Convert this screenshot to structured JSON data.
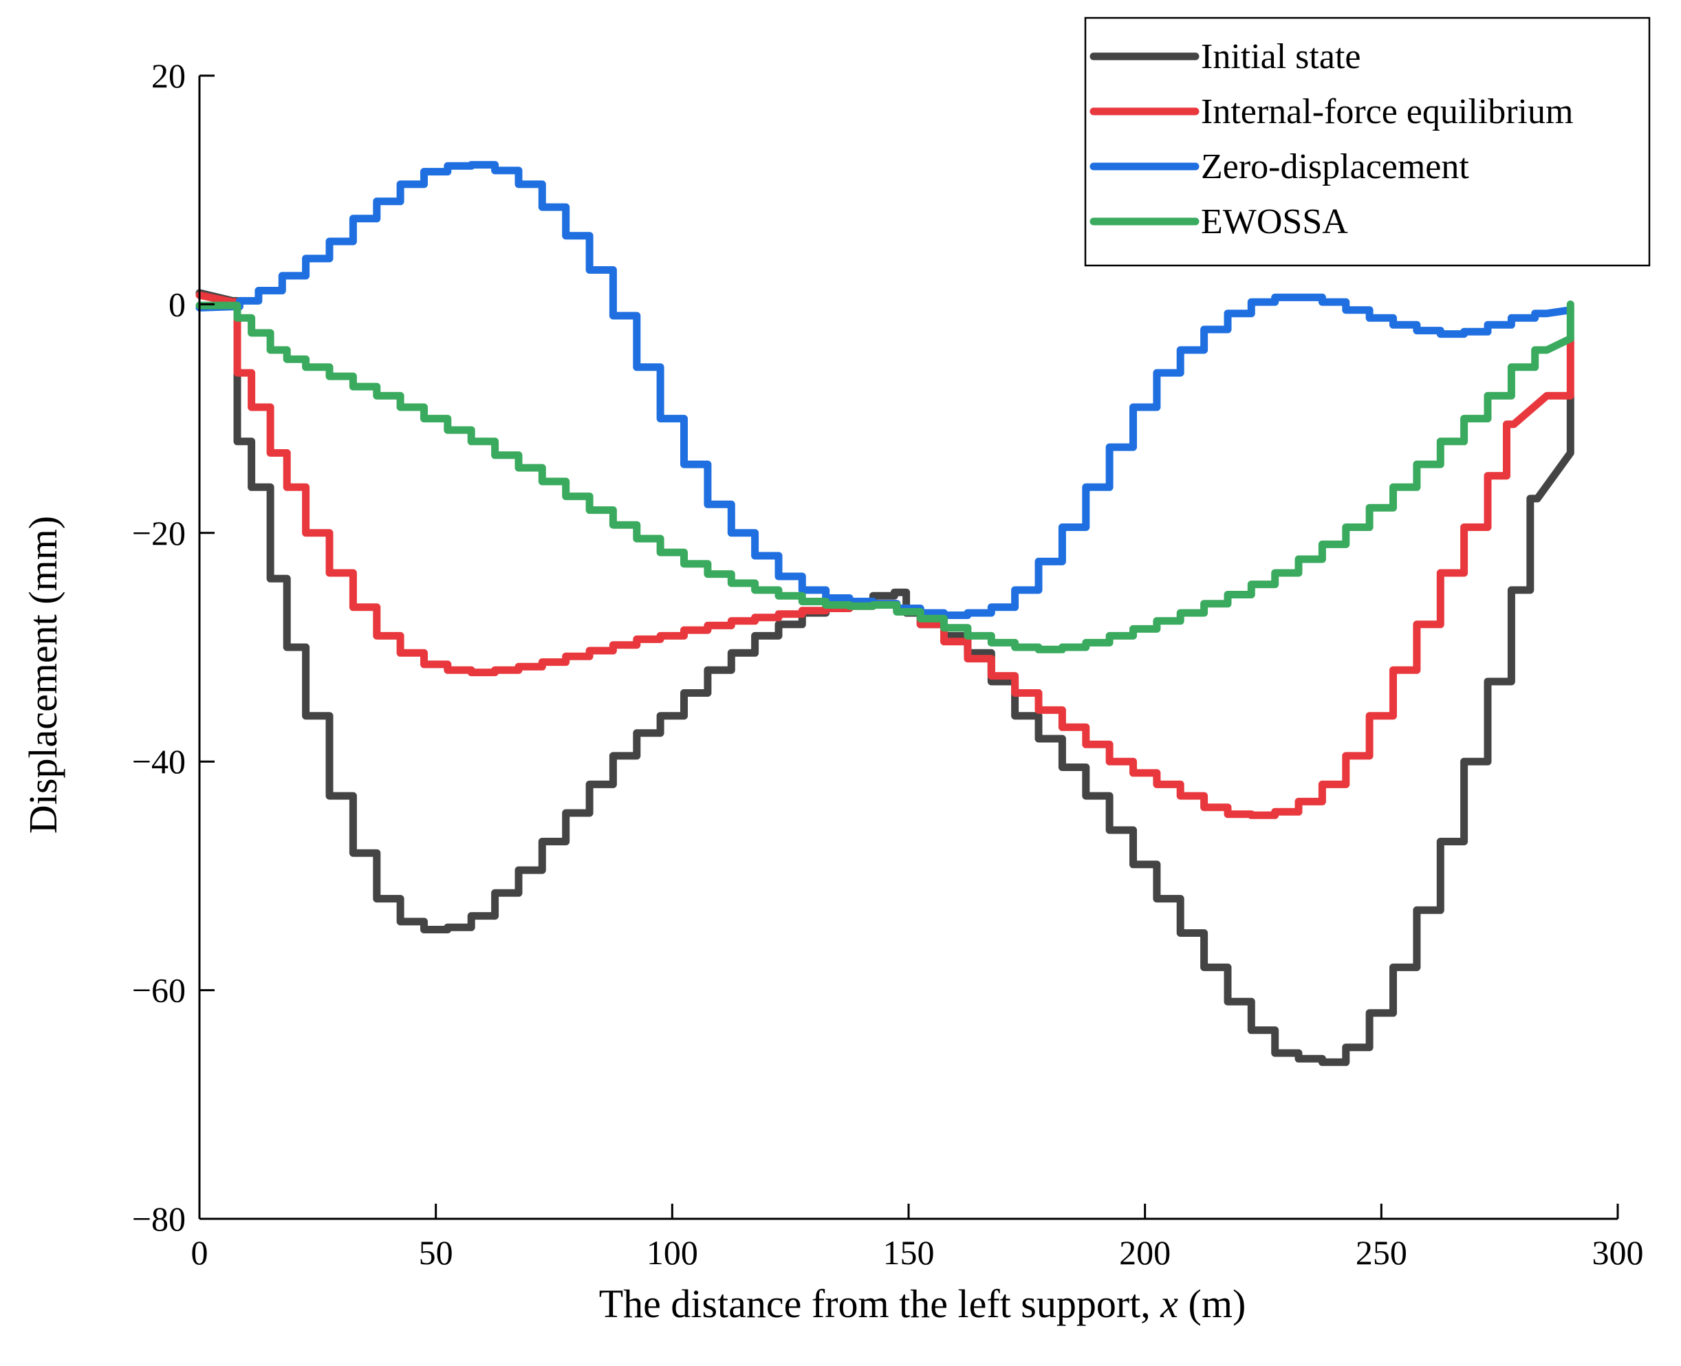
{
  "chart_data": {
    "type": "line",
    "title": "",
    "xlabel_prefix": "The distance from the left support, ",
    "xlabel_var": "x",
    "xlabel_suffix": " (m)",
    "ylabel": "Displacement (mm)",
    "xlim": [
      0,
      300
    ],
    "ylim": [
      -80,
      20
    ],
    "xticks": [
      0,
      50,
      100,
      150,
      200,
      250,
      300
    ],
    "xtick_labels": [
      "0",
      "50",
      "100",
      "150",
      "200",
      "250",
      "300"
    ],
    "yticks": [
      20,
      0,
      -20,
      -40,
      -60,
      -80
    ],
    "ytick_labels": [
      "20",
      "0",
      "−20",
      "−40",
      "−60",
      "−80"
    ],
    "grid": false,
    "legend_position": "top-right",
    "series": [
      {
        "name": "Initial state",
        "color": "#444444",
        "points": [
          [
            0,
            1.0
          ],
          [
            7,
            0.3
          ],
          [
            9,
            -12
          ],
          [
            13,
            -16
          ],
          [
            17,
            -24
          ],
          [
            20,
            -30
          ],
          [
            25,
            -36
          ],
          [
            30,
            -43
          ],
          [
            35,
            -48
          ],
          [
            40,
            -52
          ],
          [
            45,
            -54
          ],
          [
            50,
            -54.7
          ],
          [
            55,
            -54.5
          ],
          [
            60,
            -53.5
          ],
          [
            65,
            -51.5
          ],
          [
            70,
            -49.5
          ],
          [
            75,
            -47
          ],
          [
            80,
            -44.5
          ],
          [
            85,
            -42
          ],
          [
            90,
            -39.5
          ],
          [
            95,
            -37.5
          ],
          [
            100,
            -36
          ],
          [
            105,
            -34
          ],
          [
            110,
            -32
          ],
          [
            115,
            -30.5
          ],
          [
            120,
            -29
          ],
          [
            125,
            -28
          ],
          [
            130,
            -27
          ],
          [
            135,
            -26.5
          ],
          [
            140,
            -26
          ],
          [
            145,
            -25.5
          ],
          [
            149,
            -25.2
          ],
          [
            150,
            -27
          ],
          [
            155,
            -28
          ],
          [
            160,
            -29
          ],
          [
            165,
            -30.5
          ],
          [
            170,
            -33
          ],
          [
            175,
            -36
          ],
          [
            180,
            -38
          ],
          [
            185,
            -40.5
          ],
          [
            190,
            -43
          ],
          [
            195,
            -46
          ],
          [
            200,
            -49
          ],
          [
            205,
            -52
          ],
          [
            210,
            -55
          ],
          [
            215,
            -58
          ],
          [
            220,
            -61
          ],
          [
            225,
            -63.5
          ],
          [
            230,
            -65.5
          ],
          [
            235,
            -66
          ],
          [
            240,
            -66.3
          ],
          [
            245,
            -65
          ],
          [
            250,
            -62
          ],
          [
            255,
            -58
          ],
          [
            260,
            -53
          ],
          [
            265,
            -47
          ],
          [
            270,
            -40
          ],
          [
            275,
            -33
          ],
          [
            280,
            -25
          ],
          [
            283,
            -17
          ],
          [
            290,
            -13
          ],
          [
            290,
            -8
          ]
        ]
      },
      {
        "name": "Internal-force equilibrium",
        "color": "#e8383d",
        "points": [
          [
            0,
            0.8
          ],
          [
            7,
            0.2
          ],
          [
            9,
            -6
          ],
          [
            13,
            -9
          ],
          [
            17,
            -13
          ],
          [
            20,
            -16
          ],
          [
            25,
            -20
          ],
          [
            30,
            -23.5
          ],
          [
            35,
            -26.5
          ],
          [
            40,
            -29
          ],
          [
            45,
            -30.5
          ],
          [
            50,
            -31.5
          ],
          [
            55,
            -32
          ],
          [
            60,
            -32.2
          ],
          [
            65,
            -32
          ],
          [
            70,
            -31.7
          ],
          [
            75,
            -31.3
          ],
          [
            80,
            -30.8
          ],
          [
            85,
            -30.3
          ],
          [
            90,
            -29.8
          ],
          [
            95,
            -29.3
          ],
          [
            100,
            -29
          ],
          [
            105,
            -28.5
          ],
          [
            110,
            -28.1
          ],
          [
            115,
            -27.7
          ],
          [
            120,
            -27.4
          ],
          [
            125,
            -27.1
          ],
          [
            130,
            -26.8
          ],
          [
            135,
            -26.6
          ],
          [
            140,
            -26.4
          ],
          [
            145,
            -26.2
          ],
          [
            150,
            -26.8
          ],
          [
            155,
            -28
          ],
          [
            160,
            -29.5
          ],
          [
            165,
            -31
          ],
          [
            170,
            -32.5
          ],
          [
            175,
            -34
          ],
          [
            180,
            -35.5
          ],
          [
            185,
            -37
          ],
          [
            190,
            -38.5
          ],
          [
            195,
            -40
          ],
          [
            200,
            -41
          ],
          [
            205,
            -42
          ],
          [
            210,
            -43
          ],
          [
            215,
            -44
          ],
          [
            220,
            -44.6
          ],
          [
            225,
            -44.7
          ],
          [
            230,
            -44.4
          ],
          [
            235,
            -43.5
          ],
          [
            240,
            -42
          ],
          [
            245,
            -39.5
          ],
          [
            250,
            -36
          ],
          [
            255,
            -32
          ],
          [
            260,
            -28
          ],
          [
            265,
            -23.5
          ],
          [
            270,
            -19.5
          ],
          [
            275,
            -15
          ],
          [
            278,
            -10.5
          ],
          [
            285,
            -8
          ],
          [
            290,
            -8
          ],
          [
            290,
            -3
          ]
        ]
      },
      {
        "name": "Zero-displacement",
        "color": "#1f6fe0",
        "points": [
          [
            0,
            -0.3
          ],
          [
            7,
            -0.2
          ],
          [
            10,
            0.3
          ],
          [
            15,
            1.2
          ],
          [
            20,
            2.5
          ],
          [
            25,
            4
          ],
          [
            30,
            5.5
          ],
          [
            35,
            7.5
          ],
          [
            40,
            9
          ],
          [
            45,
            10.5
          ],
          [
            50,
            11.6
          ],
          [
            55,
            12.1
          ],
          [
            60,
            12.2
          ],
          [
            65,
            11.7
          ],
          [
            70,
            10.5
          ],
          [
            75,
            8.5
          ],
          [
            80,
            6
          ],
          [
            85,
            3
          ],
          [
            90,
            -1
          ],
          [
            95,
            -5.5
          ],
          [
            100,
            -10
          ],
          [
            105,
            -14
          ],
          [
            110,
            -17.5
          ],
          [
            115,
            -20
          ],
          [
            120,
            -22
          ],
          [
            125,
            -23.8
          ],
          [
            130,
            -25
          ],
          [
            135,
            -25.7
          ],
          [
            140,
            -26
          ],
          [
            145,
            -26.2
          ],
          [
            150,
            -26.6
          ],
          [
            155,
            -27
          ],
          [
            160,
            -27.2
          ],
          [
            165,
            -27
          ],
          [
            170,
            -26.5
          ],
          [
            175,
            -25
          ],
          [
            180,
            -22.5
          ],
          [
            185,
            -19.5
          ],
          [
            190,
            -16
          ],
          [
            195,
            -12.5
          ],
          [
            200,
            -9
          ],
          [
            205,
            -6
          ],
          [
            210,
            -4
          ],
          [
            215,
            -2.2
          ],
          [
            220,
            -0.8
          ],
          [
            225,
            0.2
          ],
          [
            230,
            0.6
          ],
          [
            235,
            0.6
          ],
          [
            240,
            0.2
          ],
          [
            245,
            -0.5
          ],
          [
            250,
            -1.2
          ],
          [
            255,
            -1.8
          ],
          [
            260,
            -2.3
          ],
          [
            265,
            -2.6
          ],
          [
            270,
            -2.4
          ],
          [
            275,
            -1.8
          ],
          [
            280,
            -1.2
          ],
          [
            285,
            -0.8
          ],
          [
            290,
            -0.5
          ]
        ]
      },
      {
        "name": "EWOSSA",
        "color": "#3aaa5e",
        "points": [
          [
            0,
            -0.1
          ],
          [
            7,
            -0.1
          ],
          [
            9,
            -1.2
          ],
          [
            13,
            -2.5
          ],
          [
            17,
            -4
          ],
          [
            20,
            -4.8
          ],
          [
            25,
            -5.5
          ],
          [
            30,
            -6.3
          ],
          [
            35,
            -7.2
          ],
          [
            40,
            -8
          ],
          [
            45,
            -9
          ],
          [
            50,
            -10
          ],
          [
            55,
            -11
          ],
          [
            60,
            -12
          ],
          [
            65,
            -13.2
          ],
          [
            70,
            -14.3
          ],
          [
            75,
            -15.5
          ],
          [
            80,
            -16.8
          ],
          [
            85,
            -18
          ],
          [
            90,
            -19.3
          ],
          [
            95,
            -20.5
          ],
          [
            100,
            -21.7
          ],
          [
            105,
            -22.7
          ],
          [
            110,
            -23.6
          ],
          [
            115,
            -24.4
          ],
          [
            120,
            -25
          ],
          [
            125,
            -25.5
          ],
          [
            130,
            -26
          ],
          [
            135,
            -26.3
          ],
          [
            140,
            -26.4
          ],
          [
            145,
            -26.3
          ],
          [
            150,
            -26.9
          ],
          [
            155,
            -27.5
          ],
          [
            160,
            -28.3
          ],
          [
            165,
            -29
          ],
          [
            170,
            -29.6
          ],
          [
            175,
            -30
          ],
          [
            180,
            -30.2
          ],
          [
            185,
            -30
          ],
          [
            190,
            -29.6
          ],
          [
            195,
            -29
          ],
          [
            200,
            -28.4
          ],
          [
            205,
            -27.7
          ],
          [
            210,
            -27
          ],
          [
            215,
            -26.2
          ],
          [
            220,
            -25.4
          ],
          [
            225,
            -24.5
          ],
          [
            230,
            -23.5
          ],
          [
            235,
            -22.3
          ],
          [
            240,
            -21
          ],
          [
            245,
            -19.5
          ],
          [
            250,
            -17.8
          ],
          [
            255,
            -16
          ],
          [
            260,
            -14
          ],
          [
            265,
            -12
          ],
          [
            270,
            -10
          ],
          [
            275,
            -8
          ],
          [
            280,
            -5.5
          ],
          [
            285,
            -4
          ],
          [
            290,
            -3
          ],
          [
            290,
            0
          ]
        ]
      }
    ]
  }
}
